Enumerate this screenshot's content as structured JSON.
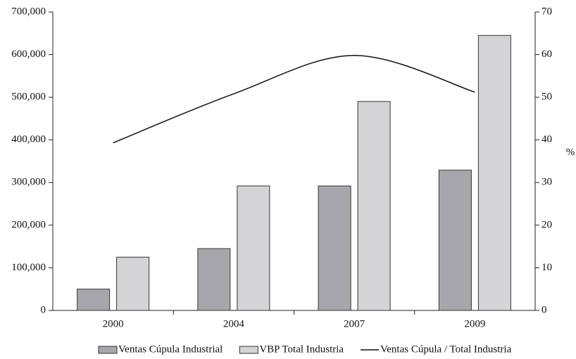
{
  "chart_data": {
    "type": "bar+line",
    "categories": [
      "2000",
      "2004",
      "2007",
      "2009"
    ],
    "series": [
      {
        "name": "Ventas Cúpula Industrial",
        "type": "bar",
        "color": "#a7a7ab",
        "values": [
          50000,
          145000,
          292000,
          329000
        ]
      },
      {
        "name": "VBP Total Industria",
        "type": "bar",
        "color": "#d4d4d6",
        "values": [
          125000,
          292000,
          490000,
          645000
        ]
      },
      {
        "name": "Ventas Cúpula / Total Industria",
        "type": "line",
        "axis": "y2",
        "color": "#111111",
        "values": [
          39.3,
          50.8,
          59.8,
          51.2
        ]
      }
    ],
    "ylim": [
      0,
      700000
    ],
    "yticks": [
      0,
      {
        "value": 100000,
        "label": "100,000"
      },
      {
        "value": 200000,
        "label": "200,000"
      },
      {
        "value": 300000,
        "label": "300,000"
      },
      {
        "value": 400000,
        "label": "400,000"
      },
      {
        "value": 500000,
        "label": "500,000"
      },
      {
        "value": 600000,
        "label": "600,000"
      },
      {
        "value": 700000,
        "label": "700,000"
      }
    ],
    "y2lim": [
      0,
      70
    ],
    "y2ticks": [
      0,
      10,
      20,
      30,
      40,
      50,
      60,
      70
    ],
    "y2label": "%",
    "legend": "bottom"
  }
}
